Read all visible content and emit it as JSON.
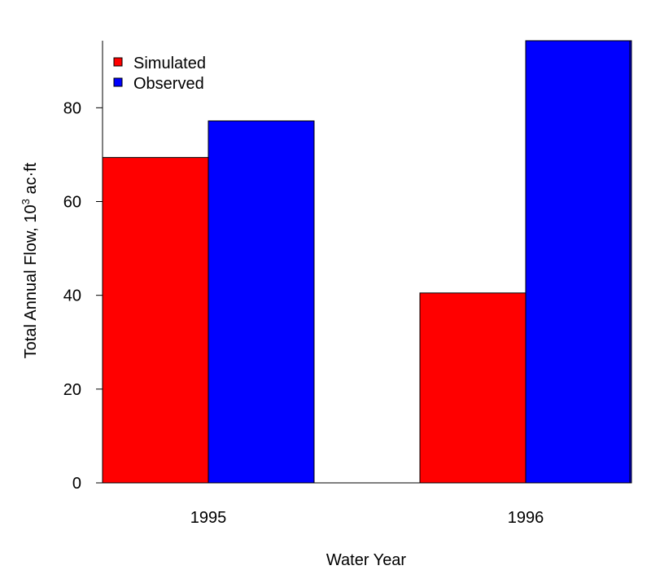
{
  "chart_data": {
    "type": "bar",
    "categories": [
      "1995",
      "1996"
    ],
    "series": [
      {
        "name": "Simulated",
        "color": "#ff0000",
        "values": [
          69.4,
          40.5
        ]
      },
      {
        "name": "Observed",
        "color": "#0000ff",
        "values": [
          77.2,
          94.3
        ]
      }
    ],
    "xlabel": "Water Year",
    "ylabel": {
      "prefix": "Total Annual Flow, 10",
      "superscript": "3",
      "suffix": " ac·ft"
    },
    "ylim": [
      0,
      94.3
    ],
    "yticks": [
      "0",
      "20",
      "40",
      "60",
      "80"
    ],
    "legend_position": "top-left",
    "grid": false
  }
}
